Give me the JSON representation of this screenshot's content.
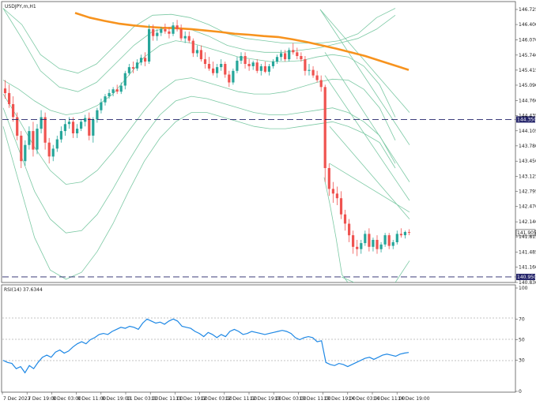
{
  "chart_data": [
    {
      "type": "candlestick",
      "title": "USDJPY,m,H1",
      "y_ticks": [
        "146.725",
        "146.400",
        "146.070",
        "145.740",
        "145.415",
        "145.090",
        "144.760",
        "144.435",
        "144.105",
        "143.780",
        "143.450",
        "143.125",
        "142.795",
        "142.470",
        "142.140",
        "141.815",
        "141.485",
        "141.160",
        "140.830"
      ],
      "ylim": [
        140.83,
        146.725
      ],
      "x_ticks": [
        "7 Dec 2023",
        "7 Dec 19:00",
        "8 Dec 03:00",
        "8 Dec 11:00",
        "8 Dec 19:00",
        "11 Dec 03:00",
        "11 Dec 11:00",
        "11 Dec 19:00",
        "12 Dec 03:00",
        "12 Dec 11:00",
        "12 Dec 19:00",
        "13 Dec 03:00",
        "13 Dec 11:00",
        "13 Dec 19:00",
        "14 Dec 03:00",
        "14 Dec 11:00",
        "14 Dec 19:00"
      ],
      "horizontal_lines": [
        {
          "label": "144.350",
          "value": 144.35
        },
        {
          "label": "140.950",
          "value": 140.95
        }
      ],
      "current_price": {
        "label": "141.905",
        "value": 141.905
      },
      "colors": {
        "up": "#26a69a",
        "down": "#ef5350",
        "ma": "#f7931e",
        "bands": "#7cc9a4",
        "levels": "#23236a",
        "tag": "#23236a"
      },
      "candles": [
        {
          "o": 145.02,
          "h": 145.2,
          "l": 144.8,
          "c": 144.92
        },
        {
          "o": 144.92,
          "h": 145.1,
          "l": 144.6,
          "c": 144.68
        },
        {
          "o": 144.68,
          "h": 144.85,
          "l": 144.3,
          "c": 144.4
        },
        {
          "o": 144.4,
          "h": 144.5,
          "l": 143.9,
          "c": 144.0
        },
        {
          "o": 144.0,
          "h": 144.1,
          "l": 143.3,
          "c": 143.45
        },
        {
          "o": 143.45,
          "h": 143.9,
          "l": 143.35,
          "c": 143.8
        },
        {
          "o": 143.8,
          "h": 144.2,
          "l": 143.7,
          "c": 144.1
        },
        {
          "o": 144.1,
          "h": 144.3,
          "l": 143.55,
          "c": 143.7
        },
        {
          "o": 143.7,
          "h": 144.25,
          "l": 143.6,
          "c": 144.15
        },
        {
          "o": 144.15,
          "h": 144.55,
          "l": 144.05,
          "c": 144.4
        },
        {
          "o": 144.4,
          "h": 144.5,
          "l": 143.7,
          "c": 143.85
        },
        {
          "o": 143.85,
          "h": 143.95,
          "l": 143.4,
          "c": 143.55
        },
        {
          "o": 143.55,
          "h": 143.8,
          "l": 143.45,
          "c": 143.72
        },
        {
          "o": 143.72,
          "h": 144.0,
          "l": 143.65,
          "c": 143.92
        },
        {
          "o": 143.92,
          "h": 144.2,
          "l": 143.85,
          "c": 144.1
        },
        {
          "o": 144.1,
          "h": 144.35,
          "l": 144.0,
          "c": 144.25
        },
        {
          "o": 144.25,
          "h": 144.4,
          "l": 144.15,
          "c": 144.3
        },
        {
          "o": 144.3,
          "h": 144.4,
          "l": 143.95,
          "c": 144.05
        },
        {
          "o": 144.05,
          "h": 144.25,
          "l": 143.95,
          "c": 144.15
        },
        {
          "o": 144.15,
          "h": 144.35,
          "l": 144.1,
          "c": 144.3
        },
        {
          "o": 144.3,
          "h": 144.45,
          "l": 144.2,
          "c": 144.38
        },
        {
          "o": 144.38,
          "h": 144.5,
          "l": 143.9,
          "c": 144.0
        },
        {
          "o": 144.0,
          "h": 144.4,
          "l": 143.85,
          "c": 144.35
        },
        {
          "o": 144.35,
          "h": 144.6,
          "l": 144.28,
          "c": 144.55
        },
        {
          "o": 144.55,
          "h": 144.8,
          "l": 144.48,
          "c": 144.72
        },
        {
          "o": 144.72,
          "h": 144.9,
          "l": 144.65,
          "c": 144.85
        },
        {
          "o": 144.85,
          "h": 145.0,
          "l": 144.8,
          "c": 144.92
        },
        {
          "o": 144.92,
          "h": 145.05,
          "l": 144.85,
          "c": 145.0
        },
        {
          "o": 145.0,
          "h": 145.1,
          "l": 144.9,
          "c": 144.95
        },
        {
          "o": 144.95,
          "h": 145.15,
          "l": 144.9,
          "c": 145.08
        },
        {
          "o": 145.08,
          "h": 145.4,
          "l": 145.0,
          "c": 145.35
        },
        {
          "o": 145.35,
          "h": 145.55,
          "l": 145.3,
          "c": 145.48
        },
        {
          "o": 145.48,
          "h": 145.6,
          "l": 145.35,
          "c": 145.45
        },
        {
          "o": 145.45,
          "h": 145.65,
          "l": 145.4,
          "c": 145.58
        },
        {
          "o": 145.58,
          "h": 145.75,
          "l": 145.52,
          "c": 145.68
        },
        {
          "o": 145.68,
          "h": 145.8,
          "l": 145.5,
          "c": 145.6
        },
        {
          "o": 145.6,
          "h": 146.4,
          "l": 145.55,
          "c": 146.3
        },
        {
          "o": 146.3,
          "h": 146.4,
          "l": 146.05,
          "c": 146.15
        },
        {
          "o": 146.15,
          "h": 146.3,
          "l": 146.05,
          "c": 146.22
        },
        {
          "o": 146.22,
          "h": 146.35,
          "l": 146.15,
          "c": 146.3
        },
        {
          "o": 146.3,
          "h": 146.42,
          "l": 146.2,
          "c": 146.25
        },
        {
          "o": 146.25,
          "h": 146.35,
          "l": 146.1,
          "c": 146.2
        },
        {
          "o": 146.2,
          "h": 146.45,
          "l": 146.15,
          "c": 146.38
        },
        {
          "o": 146.38,
          "h": 146.5,
          "l": 146.25,
          "c": 146.3
        },
        {
          "o": 146.3,
          "h": 146.4,
          "l": 146.05,
          "c": 146.1
        },
        {
          "o": 146.1,
          "h": 146.25,
          "l": 146.0,
          "c": 146.15
        },
        {
          "o": 146.15,
          "h": 146.25,
          "l": 146.0,
          "c": 146.05
        },
        {
          "o": 146.05,
          "h": 146.1,
          "l": 145.7,
          "c": 145.78
        },
        {
          "o": 145.78,
          "h": 145.95,
          "l": 145.7,
          "c": 145.85
        },
        {
          "o": 145.85,
          "h": 145.95,
          "l": 145.6,
          "c": 145.65
        },
        {
          "o": 145.65,
          "h": 145.8,
          "l": 145.45,
          "c": 145.55
        },
        {
          "o": 145.55,
          "h": 145.7,
          "l": 145.4,
          "c": 145.45
        },
        {
          "o": 145.45,
          "h": 145.6,
          "l": 145.3,
          "c": 145.35
        },
        {
          "o": 145.35,
          "h": 145.55,
          "l": 145.25,
          "c": 145.48
        },
        {
          "o": 145.48,
          "h": 145.65,
          "l": 145.4,
          "c": 145.55
        },
        {
          "o": 145.55,
          "h": 145.6,
          "l": 145.25,
          "c": 145.32
        },
        {
          "o": 145.32,
          "h": 145.4,
          "l": 145.05,
          "c": 145.15
        },
        {
          "o": 145.15,
          "h": 145.45,
          "l": 145.1,
          "c": 145.4
        },
        {
          "o": 145.4,
          "h": 145.7,
          "l": 145.35,
          "c": 145.62
        },
        {
          "o": 145.62,
          "h": 145.8,
          "l": 145.55,
          "c": 145.72
        },
        {
          "o": 145.72,
          "h": 145.8,
          "l": 145.45,
          "c": 145.55
        },
        {
          "o": 145.55,
          "h": 145.65,
          "l": 145.4,
          "c": 145.5
        },
        {
          "o": 145.5,
          "h": 145.62,
          "l": 145.42,
          "c": 145.58
        },
        {
          "o": 145.58,
          "h": 145.65,
          "l": 145.35,
          "c": 145.4
        },
        {
          "o": 145.4,
          "h": 145.55,
          "l": 145.3,
          "c": 145.5
        },
        {
          "o": 145.5,
          "h": 145.6,
          "l": 145.35,
          "c": 145.38
        },
        {
          "o": 145.38,
          "h": 145.55,
          "l": 145.3,
          "c": 145.5
        },
        {
          "o": 145.5,
          "h": 145.65,
          "l": 145.45,
          "c": 145.6
        },
        {
          "o": 145.6,
          "h": 145.75,
          "l": 145.55,
          "c": 145.7
        },
        {
          "o": 145.7,
          "h": 145.85,
          "l": 145.62,
          "c": 145.78
        },
        {
          "o": 145.78,
          "h": 145.85,
          "l": 145.6,
          "c": 145.65
        },
        {
          "o": 145.65,
          "h": 145.9,
          "l": 145.6,
          "c": 145.85
        },
        {
          "o": 145.85,
          "h": 146.0,
          "l": 145.75,
          "c": 145.8
        },
        {
          "o": 145.8,
          "h": 145.9,
          "l": 145.65,
          "c": 145.72
        },
        {
          "o": 145.72,
          "h": 145.8,
          "l": 145.6,
          "c": 145.65
        },
        {
          "o": 145.65,
          "h": 145.72,
          "l": 145.3,
          "c": 145.4
        },
        {
          "o": 145.4,
          "h": 145.55,
          "l": 145.3,
          "c": 145.42
        },
        {
          "o": 145.42,
          "h": 145.5,
          "l": 145.25,
          "c": 145.3
        },
        {
          "o": 145.3,
          "h": 145.4,
          "l": 145.15,
          "c": 145.2
        },
        {
          "o": 145.2,
          "h": 145.3,
          "l": 144.95,
          "c": 145.05
        },
        {
          "o": 145.05,
          "h": 145.1,
          "l": 143.0,
          "c": 143.3
        },
        {
          "o": 143.3,
          "h": 143.4,
          "l": 142.7,
          "c": 142.85
        },
        {
          "o": 142.85,
          "h": 143.0,
          "l": 142.55,
          "c": 142.75
        },
        {
          "o": 142.75,
          "h": 142.9,
          "l": 142.5,
          "c": 142.65
        },
        {
          "o": 142.65,
          "h": 142.8,
          "l": 142.2,
          "c": 142.3
        },
        {
          "o": 142.3,
          "h": 142.4,
          "l": 141.95,
          "c": 142.1
        },
        {
          "o": 142.1,
          "h": 142.2,
          "l": 141.7,
          "c": 141.85
        },
        {
          "o": 141.85,
          "h": 141.95,
          "l": 141.45,
          "c": 141.6
        },
        {
          "o": 141.6,
          "h": 141.75,
          "l": 141.4,
          "c": 141.55
        },
        {
          "o": 141.55,
          "h": 141.75,
          "l": 141.45,
          "c": 141.68
        },
        {
          "o": 141.68,
          "h": 141.95,
          "l": 141.62,
          "c": 141.88
        },
        {
          "o": 141.88,
          "h": 142.0,
          "l": 141.5,
          "c": 141.6
        },
        {
          "o": 141.6,
          "h": 141.8,
          "l": 141.5,
          "c": 141.75
        },
        {
          "o": 141.75,
          "h": 141.85,
          "l": 141.45,
          "c": 141.55
        },
        {
          "o": 141.55,
          "h": 141.7,
          "l": 141.48,
          "c": 141.65
        },
        {
          "o": 141.65,
          "h": 141.9,
          "l": 141.6,
          "c": 141.85
        },
        {
          "o": 141.85,
          "h": 141.9,
          "l": 141.55,
          "c": 141.62
        },
        {
          "o": 141.62,
          "h": 141.75,
          "l": 141.55,
          "c": 141.7
        },
        {
          "o": 141.7,
          "h": 141.95,
          "l": 141.65,
          "c": 141.88
        },
        {
          "o": 141.88,
          "h": 142.0,
          "l": 141.8,
          "c": 141.85
        },
        {
          "o": 141.85,
          "h": 141.95,
          "l": 141.78,
          "c": 141.92
        },
        {
          "o": 141.92,
          "h": 141.98,
          "l": 141.85,
          "c": 141.905
        }
      ],
      "ma": [
        146.65,
        146.55,
        146.48,
        146.42,
        146.38,
        146.35,
        146.33,
        146.32,
        146.3,
        146.27,
        146.24,
        146.2,
        146.18,
        146.15,
        146.13,
        146.08,
        146.02,
        145.95,
        145.88,
        145.8,
        145.72,
        145.62,
        145.52,
        145.42
      ],
      "bands": [
        [
          146.75,
          146.4,
          145.75,
          145.45,
          145.35,
          145.55,
          145.95,
          146.35,
          146.6,
          146.62,
          146.55,
          146.4,
          146.2,
          146.1,
          146.05,
          146.0,
          146.0,
          146.0,
          146.05,
          146.2,
          146.55,
          146.75
        ],
        [
          146.75,
          146.1,
          145.4,
          145.05,
          144.95,
          145.15,
          145.55,
          145.95,
          146.25,
          146.35,
          146.3,
          146.15,
          145.95,
          145.85,
          145.8,
          145.8,
          145.85,
          145.9,
          146.0,
          146.1,
          146.3,
          146.6
        ],
        [
          145.2,
          145.0,
          144.75,
          144.55,
          144.45,
          144.5,
          144.65,
          144.9,
          145.3,
          145.7,
          145.95,
          146.05,
          146.0,
          145.9,
          145.8,
          145.7,
          145.65,
          145.6,
          145.6,
          145.62,
          145.7,
          145.75,
          145.7,
          145.5,
          145.1,
          144.4
        ],
        [
          144.9,
          144.35,
          143.75,
          143.25,
          142.95,
          143.0,
          143.25,
          143.65,
          144.1,
          144.55,
          144.95,
          145.2,
          145.25,
          145.15,
          145.05,
          144.95,
          144.9,
          144.9,
          144.95,
          145.05,
          145.15,
          145.22,
          145.2,
          145.0,
          144.6,
          143.9
        ],
        [
          144.6,
          143.7,
          142.8,
          142.2,
          141.9,
          141.95,
          142.3,
          142.85,
          143.45,
          144.0,
          144.45,
          144.75,
          144.85,
          144.8,
          144.7,
          144.6,
          144.5,
          144.45,
          144.45,
          144.5,
          144.55,
          144.6,
          144.5,
          144.3,
          144.0,
          143.4
        ],
        [
          144.2,
          143.0,
          141.8,
          141.1,
          140.9,
          141.05,
          141.5,
          142.1,
          142.8,
          143.45,
          143.95,
          144.3,
          144.5,
          144.5,
          144.4,
          144.3,
          144.2,
          144.15,
          144.15,
          144.2,
          144.25,
          144.3,
          144.2,
          144.05,
          143.85,
          143.3
        ]
      ],
      "bands_lower_tail": [
        [
          143.1,
          142.5,
          141.8,
          141.0,
          140.83
        ],
        [
          140.95,
          140.83
        ]
      ],
      "bands_right_segments": [
        [
          [
            146.725,
            144.5
          ],
          [
            145.8,
            143.0
          ],
          [
            144.2,
            142.2
          ]
        ],
        [
          [
            146.725,
            143.8
          ],
          [
            145.3,
            142.6
          ],
          [
            143.4,
            142.35
          ]
        ],
        [
          [
            140.83,
            141.3
          ]
        ]
      ]
    },
    {
      "type": "line",
      "title": "RSI(14) 37.6344",
      "y_ticks": [
        "100",
        "70",
        "50",
        "30",
        "0"
      ],
      "ylim": [
        0,
        100
      ],
      "series": [
        {
          "values": [
            30,
            28,
            27,
            22,
            24,
            18,
            25,
            22,
            28,
            33,
            35,
            33,
            38,
            40,
            37,
            39,
            43,
            46,
            48,
            46,
            50,
            52,
            55,
            56,
            55,
            58,
            60,
            62,
            61,
            63,
            62,
            60,
            66,
            70,
            68,
            66,
            67,
            65,
            68,
            70,
            68,
            63,
            62,
            61,
            58,
            56,
            53,
            57,
            55,
            52,
            55,
            53,
            58,
            60,
            58,
            55,
            56,
            58,
            57,
            56,
            55,
            56,
            57,
            58,
            59,
            58,
            56,
            52,
            50,
            52,
            53,
            52,
            48,
            49,
            28,
            26,
            25,
            27,
            26,
            24,
            26,
            28,
            30,
            32,
            33,
            31,
            33,
            35,
            36,
            35,
            34,
            36,
            37,
            37.6
          ]
        }
      ]
    }
  ]
}
